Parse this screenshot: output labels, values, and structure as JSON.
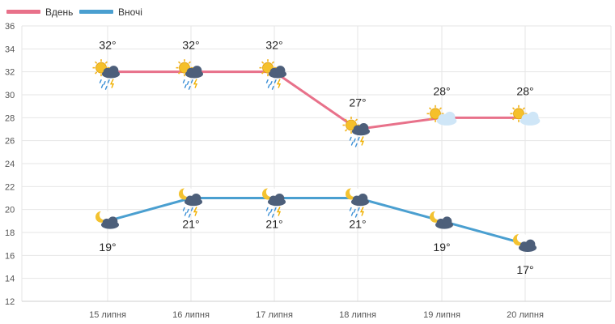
{
  "chart_data": {
    "type": "line",
    "categories": [
      "15 липня",
      "16 липня",
      "17 липня",
      "18 липня",
      "19 липня",
      "20 липня"
    ],
    "ylim": [
      12,
      36
    ],
    "yticks": [
      "12",
      "14",
      "16",
      "18",
      "20",
      "22",
      "24",
      "26",
      "28",
      "30",
      "32",
      "34",
      "36"
    ],
    "grid": true,
    "legend": "top-left",
    "series": [
      {
        "name": "Вдень",
        "color": "#e8718a",
        "values": [
          32,
          32,
          32,
          27,
          28,
          28
        ],
        "labels": [
          "32°",
          "32°",
          "32°",
          "27°",
          "28°",
          "28°"
        ],
        "icons": [
          "sun-cloud-rain-thunder-icon",
          "sun-cloud-rain-thunder-icon",
          "sun-cloud-rain-thunder-icon",
          "sun-cloud-rain-thunder-icon",
          "sun-cloud-icon",
          "sun-cloud-icon"
        ]
      },
      {
        "name": "Вночі",
        "color": "#4a9fd0",
        "values": [
          19,
          21,
          21,
          21,
          19,
          17
        ],
        "labels": [
          "19°",
          "21°",
          "21°",
          "21°",
          "19°",
          "17°"
        ],
        "icons": [
          "moon-cloud-icon",
          "moon-cloud-rain-thunder-icon",
          "moon-cloud-rain-thunder-icon",
          "moon-cloud-rain-thunder-icon",
          "moon-cloud-icon",
          "moon-cloud-icon"
        ]
      }
    ]
  }
}
